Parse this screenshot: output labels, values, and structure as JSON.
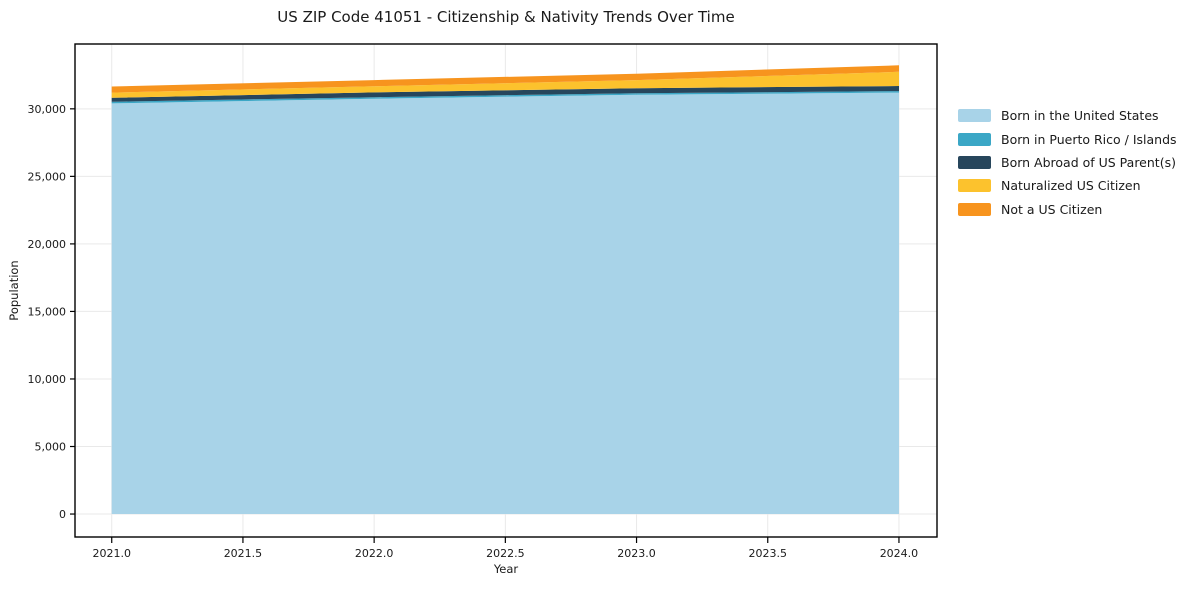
{
  "chart_data": {
    "type": "area",
    "stacked": true,
    "title": "US ZIP Code 41051 - Citizenship & Nativity Trends Over Time",
    "xlabel": "Year",
    "ylabel": "Population",
    "x": [
      2021,
      2022,
      2023,
      2024
    ],
    "series": [
      {
        "name": "Born in the United States",
        "color": "#A8D3E8",
        "values": [
          30400,
          30750,
          31050,
          31200
        ]
      },
      {
        "name": "Born in Puerto Rico / Islands",
        "color": "#3BA7C6",
        "values": [
          120,
          110,
          110,
          110
        ]
      },
      {
        "name": "Born Abroad of US Parent(s)",
        "color": "#27465C",
        "values": [
          300,
          360,
          370,
          380
        ]
      },
      {
        "name": "Naturalized US Citizen",
        "color": "#FCC22D",
        "values": [
          380,
          450,
          600,
          1050
        ]
      },
      {
        "name": "Not a US Citizen",
        "color": "#F7941E",
        "values": [
          450,
          460,
          470,
          480
        ]
      }
    ],
    "xlim": [
      2020.86,
      2024.145
    ],
    "ylim": [
      -1700,
      34800
    ],
    "xticks": [
      2021.0,
      2021.5,
      2022.0,
      2022.5,
      2023.0,
      2023.5,
      2024.0
    ],
    "xtick_labels": [
      "2021.0",
      "2021.5",
      "2022.0",
      "2022.5",
      "2023.0",
      "2023.5",
      "2024.0"
    ],
    "yticks": [
      0,
      5000,
      10000,
      15000,
      20000,
      25000,
      30000
    ],
    "ytick_labels": [
      "0",
      "5,000",
      "10,000",
      "15,000",
      "20,000",
      "25,000",
      "30,000"
    ],
    "grid": true,
    "legend_position": "right",
    "colors": {
      "grid": "#e9e9e9",
      "frame": "#000000",
      "text": "#1a1a1a",
      "background": "#ffffff"
    }
  }
}
